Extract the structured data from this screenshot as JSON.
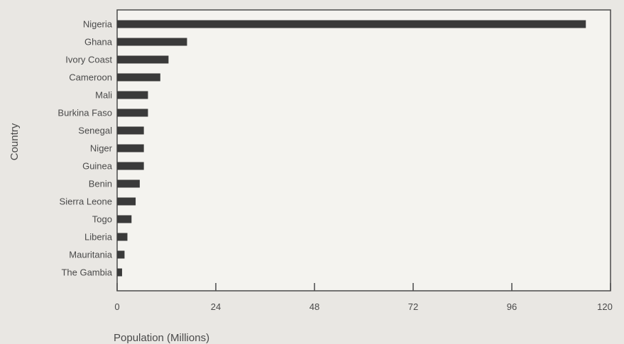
{
  "chart_data": {
    "type": "bar",
    "orientation": "horizontal",
    "categories": [
      "Nigeria",
      "Ghana",
      "Ivory Coast",
      "Cameroon",
      "Mali",
      "Burkina Faso",
      "Senegal",
      "Niger",
      "Guinea",
      "Benin",
      "Sierra Leone",
      "Togo",
      "Liberia",
      "Mauritania",
      "The Gambia"
    ],
    "values": [
      114,
      17,
      12.5,
      10.5,
      7.5,
      7.5,
      6.5,
      6.5,
      6.5,
      5.5,
      4.5,
      3.5,
      2.5,
      1.8,
      1.2
    ],
    "title": "",
    "xlabel": "Population (Millions)",
    "ylabel": "Country",
    "xlim": [
      0,
      120
    ],
    "xticks": [
      "0",
      "24",
      "48",
      "72",
      "96",
      "120"
    ],
    "grid": false,
    "colors": {
      "bar": "#3a3a3a",
      "plot_bg": "#f4f3ef",
      "page_bg": "#e9e7e3",
      "frame": "#4a4a4a"
    }
  }
}
